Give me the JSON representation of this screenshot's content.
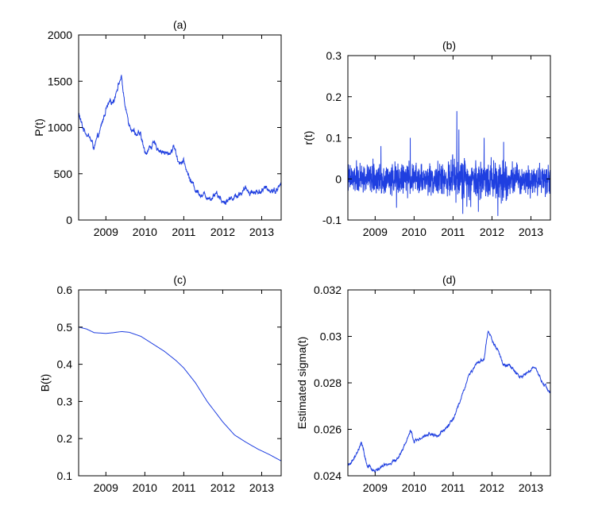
{
  "colors": {
    "series": "#1f3fe0",
    "axes": "#000000",
    "background": "#ffffff"
  },
  "chart_data": [
    {
      "id": "a",
      "type": "line",
      "title": "(a)",
      "xlabel": "",
      "ylabel": "P(t)",
      "xlim": [
        2008.3,
        2013.5
      ],
      "ylim": [
        0,
        2000
      ],
      "xticks": [
        2009,
        2010,
        2011,
        2012,
        2013
      ],
      "xtick_labels": [
        "2009",
        "2010",
        "2011",
        "2012",
        "2013"
      ],
      "yticks": [
        0,
        500,
        1000,
        1500,
        2000
      ],
      "ytick_labels": [
        "0",
        "500",
        "1000",
        "1500",
        "2000"
      ],
      "grid": false,
      "noise": 35,
      "x": [
        2008.3,
        2008.4,
        2008.55,
        2008.7,
        2008.85,
        2009.0,
        2009.1,
        2009.2,
        2009.3,
        2009.4,
        2009.5,
        2009.6,
        2009.75,
        2009.9,
        2010.0,
        2010.2,
        2010.4,
        2010.6,
        2010.75,
        2010.85,
        2011.0,
        2011.15,
        2011.3,
        2011.5,
        2011.7,
        2011.85,
        2012.0,
        2012.2,
        2012.4,
        2012.6,
        2012.8,
        2013.0,
        2013.2,
        2013.35,
        2013.5
      ],
      "y": [
        1150,
        1000,
        920,
        780,
        950,
        1200,
        1250,
        1300,
        1450,
        1550,
        1200,
        1050,
        950,
        900,
        720,
        820,
        760,
        700,
        800,
        650,
        620,
        450,
        330,
        270,
        250,
        300,
        200,
        230,
        280,
        330,
        300,
        320,
        340,
        320,
        390
      ]
    },
    {
      "id": "b",
      "type": "line",
      "title": "(b)",
      "xlabel": "",
      "ylabel": "r(t)",
      "xlim": [
        2008.3,
        2013.5
      ],
      "ylim": [
        -0.1,
        0.3
      ],
      "xticks": [
        2009,
        2010,
        2011,
        2012,
        2013
      ],
      "xtick_labels": [
        "2009",
        "2010",
        "2011",
        "2012",
        "2013"
      ],
      "yticks": [
        -0.1,
        0,
        0.1,
        0.2,
        0.3
      ],
      "ytick_labels": [
        "-0.1",
        "0",
        "0.1",
        "0.2",
        "0.3"
      ],
      "grid": false,
      "returns_amplitude": 0.03,
      "spikes": [
        [
          2009.15,
          0.08
        ],
        [
          2009.9,
          0.1
        ],
        [
          2011.1,
          0.165
        ],
        [
          2011.15,
          0.12
        ],
        [
          2011.8,
          0.1
        ],
        [
          2012.3,
          0.09
        ],
        [
          2009.55,
          -0.07
        ],
        [
          2011.25,
          -0.085
        ],
        [
          2011.65,
          -0.08
        ],
        [
          2012.15,
          -0.09
        ]
      ]
    },
    {
      "id": "c",
      "type": "line",
      "title": "(c)",
      "xlabel": "",
      "ylabel": "B(t)",
      "xlim": [
        2008.3,
        2013.5
      ],
      "ylim": [
        0.1,
        0.6
      ],
      "xticks": [
        2009,
        2010,
        2011,
        2012,
        2013
      ],
      "xtick_labels": [
        "2009",
        "2010",
        "2011",
        "2012",
        "2013"
      ],
      "yticks": [
        0.1,
        0.2,
        0.3,
        0.4,
        0.5,
        0.6
      ],
      "ytick_labels": [
        "0.1",
        "0.2",
        "0.3",
        "0.4",
        "0.5",
        "0.6"
      ],
      "grid": false,
      "noise": 0,
      "x": [
        2008.3,
        2008.5,
        2008.7,
        2009.0,
        2009.2,
        2009.4,
        2009.6,
        2009.9,
        2010.2,
        2010.5,
        2010.8,
        2011.0,
        2011.3,
        2011.6,
        2012.0,
        2012.3,
        2012.6,
        2012.9,
        2013.2,
        2013.5
      ],
      "y": [
        0.5,
        0.495,
        0.485,
        0.483,
        0.485,
        0.488,
        0.486,
        0.475,
        0.455,
        0.435,
        0.41,
        0.39,
        0.35,
        0.3,
        0.245,
        0.21,
        0.19,
        0.172,
        0.157,
        0.14
      ]
    },
    {
      "id": "d",
      "type": "line",
      "title": "(d)",
      "xlabel": "",
      "ylabel": "Estimated sigma(t)",
      "xlim": [
        2008.3,
        2013.5
      ],
      "ylim": [
        0.024,
        0.032
      ],
      "xticks": [
        2009,
        2010,
        2011,
        2012,
        2013
      ],
      "xtick_labels": [
        "2009",
        "2010",
        "2011",
        "2012",
        "2013"
      ],
      "yticks": [
        0.024,
        0.026,
        0.028,
        0.03,
        0.032
      ],
      "ytick_labels": [
        "0.024",
        "0.026",
        "0.028",
        "0.03",
        "0.032"
      ],
      "grid": false,
      "noise": 8e-05,
      "x": [
        2008.3,
        2008.5,
        2008.65,
        2008.8,
        2009.0,
        2009.2,
        2009.4,
        2009.6,
        2009.75,
        2009.9,
        2010.0,
        2010.2,
        2010.4,
        2010.6,
        2010.8,
        2011.0,
        2011.2,
        2011.4,
        2011.6,
        2011.8,
        2011.9,
        2012.1,
        2012.3,
        2012.5,
        2012.7,
        2012.9,
        2013.1,
        2013.3,
        2013.5
      ],
      "y": [
        0.0244,
        0.0248,
        0.0254,
        0.0244,
        0.0242,
        0.0244,
        0.0245,
        0.0248,
        0.0253,
        0.0259,
        0.0255,
        0.0256,
        0.0258,
        0.0257,
        0.026,
        0.0264,
        0.0273,
        0.0283,
        0.0288,
        0.029,
        0.0303,
        0.0295,
        0.0288,
        0.0287,
        0.0282,
        0.0285,
        0.0286,
        0.028,
        0.0276
      ]
    }
  ]
}
